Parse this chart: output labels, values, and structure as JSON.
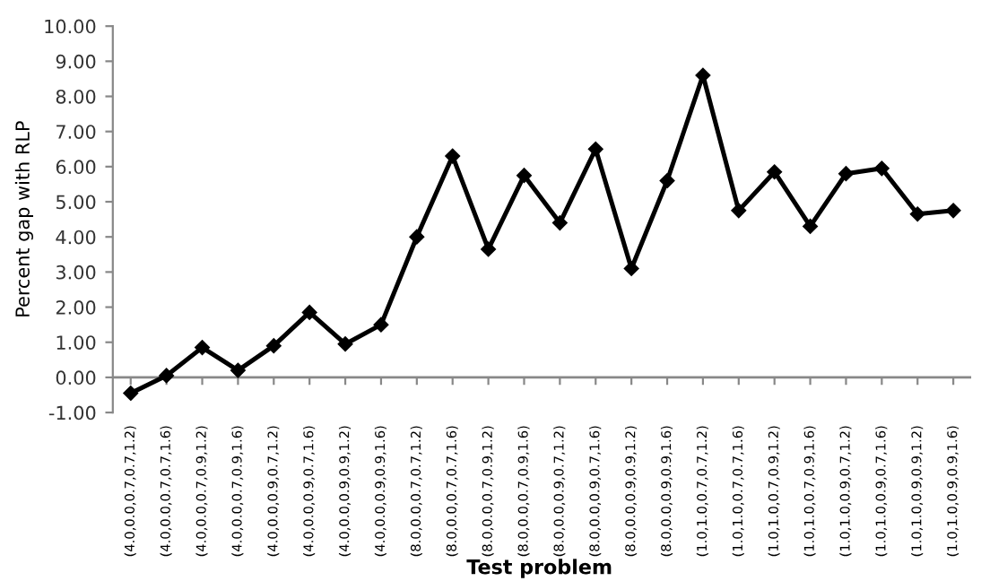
{
  "chart_data": {
    "type": "line",
    "xlabel": "Test problem",
    "ylabel": "Percent gap with RLP",
    "categories": [
      "(4.0,0.0,0.7,0.7,1.2)",
      "(4.0,0.0,0.7,0.7,1.6)",
      "(4.0,0.0,0.7,0.9,1.2)",
      "(4.0,0.0,0.7,0.9,1.6)",
      "(4.0,0.0,0.9,0.7,1.2)",
      "(4.0,0.0,0.9,0.7,1.6)",
      "(4.0,0.0,0.9,0.9,1.2)",
      "(4.0,0.0,0.9,0.9,1.6)",
      "(8.0,0.0,0.7,0.7,1.2)",
      "(8.0,0.0,0.7,0.7,1.6)",
      "(8.0,0.0,0.7,0.9,1.2)",
      "(8.0,0.0,0.7,0.9,1.6)",
      "(8.0,0.0,0.9,0.7,1.2)",
      "(8.0,0.0,0.9,0.7,1.6)",
      "(8.0,0.0,0.9,0.9,1.2)",
      "(8.0,0.0,0.9,0.9,1.6)",
      "(1.0,1.0,0.7,0.7,1.2)",
      "(1.0,1.0,0.7,0.7,1.6)",
      "(1.0,1.0,0.7,0.9,1.2)",
      "(1.0,1.0,0.7,0.9,1.6)",
      "(1.0,1.0,0.9,0.7,1.2)",
      "(1.0,1.0,0.9,0.7,1.6)",
      "(1.0,1.0,0.9,0.9,1.2)",
      "(1.0,1.0,0.9,0.9,1.6)"
    ],
    "series": [
      {
        "color": "#000000",
        "values": [
          -0.45,
          0.05,
          0.85,
          0.2,
          0.9,
          1.85,
          0.95,
          1.5,
          4.0,
          6.3,
          3.65,
          5.75,
          4.4,
          6.5,
          3.1,
          5.6,
          8.6,
          4.75,
          5.85,
          4.3,
          5.8,
          5.95,
          4.65,
          4.75
        ]
      }
    ],
    "ylim": [
      -1,
      10
    ],
    "yticks": [
      {
        "value": -1,
        "label": "-1.00"
      },
      {
        "value": 0,
        "label": "0.00"
      },
      {
        "value": 1,
        "label": "1.00"
      },
      {
        "value": 2,
        "label": "2.00"
      },
      {
        "value": 3,
        "label": "3.00"
      },
      {
        "value": 4,
        "label": "4.00"
      },
      {
        "value": 5,
        "label": "5.00"
      },
      {
        "value": 6,
        "label": "6.00"
      },
      {
        "value": 7,
        "label": "7.00"
      },
      {
        "value": 8,
        "label": "8.00"
      },
      {
        "value": 9,
        "label": "9.00"
      },
      {
        "value": 10,
        "label": "10.00"
      }
    ],
    "ref_lines": [
      {
        "axis": "y",
        "value": 0,
        "color": "#888888"
      }
    ],
    "grid": false,
    "legend": false,
    "marker": "diamond",
    "line_style": "solid"
  }
}
